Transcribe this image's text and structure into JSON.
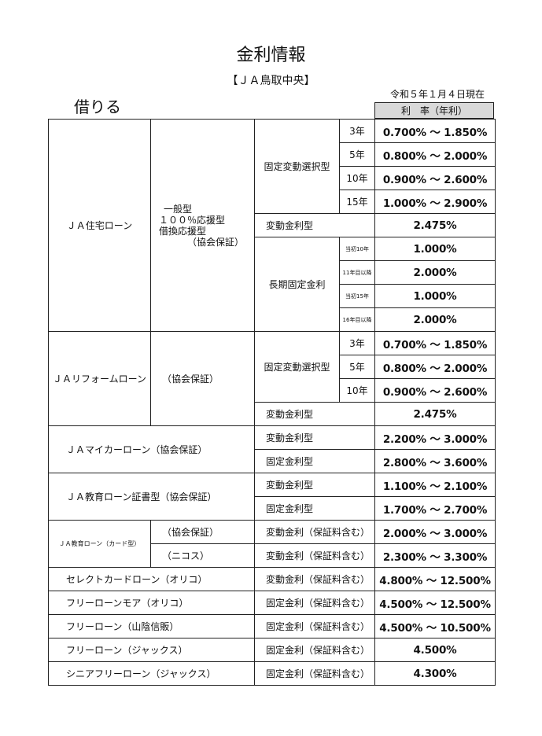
{
  "header": {
    "title": "金利情報",
    "org": "【ＪＡ鳥取中央】",
    "date": "令和５年１月４日現在",
    "section": "借りる",
    "rate_column": "利　率（年利）"
  },
  "housing": {
    "name": "ＪＡ住宅ローン",
    "sub": [
      "一般型",
      "１００％応援型",
      "借換応援型",
      "（協会保証）"
    ],
    "fixed_select": "固定変動選択型",
    "fixed_rows": [
      {
        "term": "3年",
        "rate": "0.700% ～ 1.850%"
      },
      {
        "term": "5年",
        "rate": "0.800% ～ 2.000%"
      },
      {
        "term": "10年",
        "rate": "0.900% ～ 2.600%"
      },
      {
        "term": "15年",
        "rate": "1.000% ～ 2.900%"
      }
    ],
    "variable_label": "変動金利型",
    "variable_rate": "2.475%",
    "long_label": "長期固定金利",
    "long_rows": [
      {
        "term": "当初10年",
        "rate": "1.000%"
      },
      {
        "term": "11年目以降",
        "rate": "2.000%"
      },
      {
        "term": "当初15年",
        "rate": "1.000%"
      },
      {
        "term": "16年目以降",
        "rate": "2.000%"
      }
    ]
  },
  "reform": {
    "name": "ＪＡリフォームローン",
    "sub": "（協会保証）",
    "fixed_select": "固定変動選択型",
    "fixed_rows": [
      {
        "term": "3年",
        "rate": "0.700% ～ 1.850%"
      },
      {
        "term": "5年",
        "rate": "0.800% ～ 2.000%"
      },
      {
        "term": "10年",
        "rate": "0.900% ～ 2.600%"
      }
    ],
    "variable_label": "変動金利型",
    "variable_rate": "2.475%"
  },
  "mycar": {
    "name": "ＪＡマイカーローン（協会保証）",
    "rows": [
      {
        "type": "変動金利型",
        "rate": "2.200% ～ 3.000%"
      },
      {
        "type": "固定金利型",
        "rate": "2.800% ～ 3.600%"
      }
    ]
  },
  "education": {
    "name": "ＪＡ教育ローン証書型（協会保証）",
    "rows": [
      {
        "type": "変動金利型",
        "rate": "1.100% ～ 2.100%"
      },
      {
        "type": "固定金利型",
        "rate": "1.700% ～ 2.700%"
      }
    ]
  },
  "edu_card": {
    "name": "ＪＡ教育ローン（カード型）",
    "rows": [
      {
        "guarantor": "（協会保証）",
        "type": "変動金利（保証料含む）",
        "rate": "2.000% ～ 3.000%"
      },
      {
        "guarantor": "（ニコス）",
        "type": "変動金利（保証料含む）",
        "rate": "2.300% ～ 3.300%"
      }
    ]
  },
  "others": [
    {
      "name": "セレクトカードローン（オリコ）",
      "type": "変動金利（保証料含む）",
      "rate": "4.800% ～ 12.500%"
    },
    {
      "name": "フリーローンモア（オリコ）",
      "type": "固定金利（保証料含む）",
      "rate": "4.500% ～ 12.500%"
    },
    {
      "name": "フリーローン（山陰信販）",
      "type": "固定金利（保証料含む）",
      "rate": "4.500% ～ 10.500%"
    },
    {
      "name": "フリーローン（ジャックス）",
      "type": "固定金利（保証料含む）",
      "rate": "4.500%"
    },
    {
      "name": "シニアフリーローン（ジャックス）",
      "type": "固定金利（保証料含む）",
      "rate": "4.300%"
    }
  ]
}
